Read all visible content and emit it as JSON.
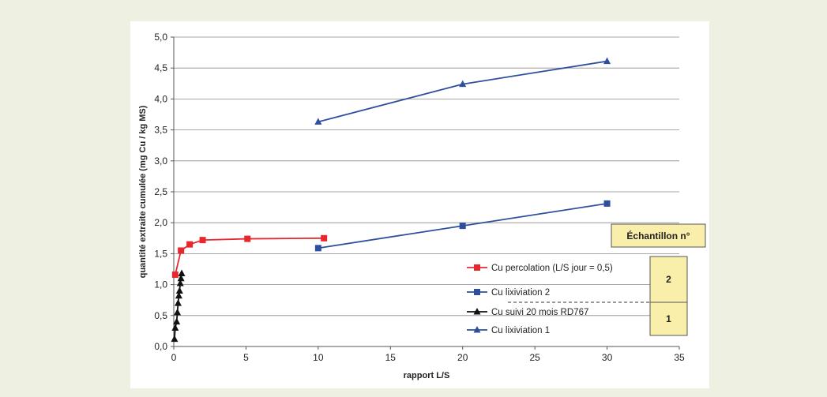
{
  "chart_data": {
    "type": "line",
    "title": "",
    "xlabel": "rapport L/S",
    "ylabel": "quantité extraite cumulée (mg Cu / kg MS)",
    "xlim": [
      0,
      35
    ],
    "ylim": [
      0,
      5
    ],
    "x_ticks": [
      "0",
      "5",
      "10",
      "15",
      "20",
      "25",
      "30",
      "35"
    ],
    "y_ticks": [
      "0,0",
      "0,5",
      "1,0",
      "1,5",
      "2,0",
      "2,5",
      "3,0",
      "3,5",
      "4,0",
      "4,5",
      "5,0"
    ],
    "grid": "horizontal",
    "legend_position": "bottom-right",
    "series": [
      {
        "name": "Cu percolation (L/S jour = 0,5)",
        "color": "#e8262d",
        "marker": "square",
        "x": [
          0.1,
          0.5,
          1.1,
          2.0,
          5.1,
          10.4
        ],
        "y": [
          1.16,
          1.55,
          1.65,
          1.72,
          1.74,
          1.75
        ]
      },
      {
        "name": "Cu lixiviation 2",
        "color": "#2e4f9e",
        "marker": "square",
        "x": [
          10,
          20,
          30
        ],
        "y": [
          1.59,
          1.95,
          2.31
        ]
      },
      {
        "name": "Cu suivi 20 mois RD767",
        "color": "#111111",
        "marker": "triangle",
        "x": [
          0.05,
          0.1,
          0.2,
          0.25,
          0.3,
          0.35,
          0.4,
          0.45,
          0.5,
          0.55
        ],
        "y": [
          0.12,
          0.3,
          0.4,
          0.55,
          0.7,
          0.82,
          0.9,
          1.02,
          1.1,
          1.18
        ]
      },
      {
        "name": "Cu lixiviation 1",
        "color": "#2e4f9e",
        "marker": "triangle",
        "x": [
          10,
          20,
          30
        ],
        "y": [
          3.63,
          4.24,
          4.61
        ]
      }
    ],
    "annotation": {
      "title": "Échantillon n°",
      "cells": [
        "2",
        "1"
      ],
      "fill": "#f9eeaa"
    }
  }
}
